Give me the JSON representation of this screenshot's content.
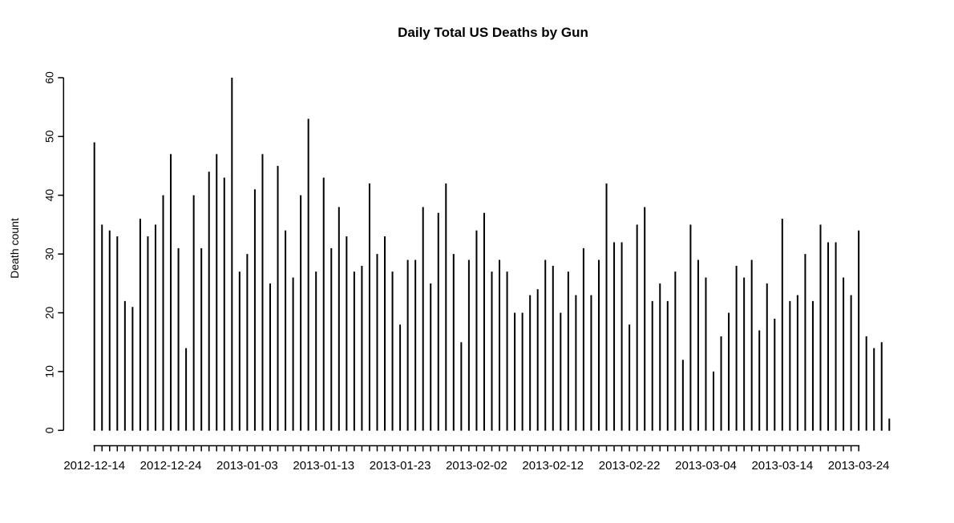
{
  "chart_data": {
    "type": "bar",
    "title": "Daily Total US Deaths by Gun",
    "xlabel": "",
    "ylabel": "Death count",
    "ylim": [
      0,
      60
    ],
    "yticks": [
      0,
      10,
      20,
      30,
      40,
      50,
      60
    ],
    "grid": false,
    "legend_position": "none",
    "bar_color": "#000000",
    "background_color": "#ffffff",
    "bar_style": "thin-vertical-line",
    "x_last_tick_date": "2013-03-24",
    "xtick_labels": [
      "2012-12-14",
      "2012-12-24",
      "2013-01-03",
      "2013-01-13",
      "2013-01-23",
      "2013-02-02",
      "2013-02-12",
      "2013-02-22",
      "2013-03-04",
      "2013-03-14",
      "2013-03-24"
    ],
    "x": [
      "2012-12-14",
      "2012-12-15",
      "2012-12-16",
      "2012-12-17",
      "2012-12-18",
      "2012-12-19",
      "2012-12-20",
      "2012-12-21",
      "2012-12-22",
      "2012-12-23",
      "2012-12-24",
      "2012-12-25",
      "2012-12-26",
      "2012-12-27",
      "2012-12-28",
      "2012-12-29",
      "2012-12-30",
      "2012-12-31",
      "2013-01-01",
      "2013-01-02",
      "2013-01-03",
      "2013-01-04",
      "2013-01-05",
      "2013-01-06",
      "2013-01-07",
      "2013-01-08",
      "2013-01-09",
      "2013-01-10",
      "2013-01-11",
      "2013-01-12",
      "2013-01-13",
      "2013-01-14",
      "2013-01-15",
      "2013-01-16",
      "2013-01-17",
      "2013-01-18",
      "2013-01-19",
      "2013-01-20",
      "2013-01-21",
      "2013-01-22",
      "2013-01-23",
      "2013-01-24",
      "2013-01-25",
      "2013-01-26",
      "2013-01-27",
      "2013-01-28",
      "2013-01-29",
      "2013-01-30",
      "2013-01-31",
      "2013-02-01",
      "2013-02-02",
      "2013-02-03",
      "2013-02-04",
      "2013-02-05",
      "2013-02-06",
      "2013-02-07",
      "2013-02-08",
      "2013-02-09",
      "2013-02-10",
      "2013-02-11",
      "2013-02-12",
      "2013-02-13",
      "2013-02-14",
      "2013-02-15",
      "2013-02-16",
      "2013-02-17",
      "2013-02-18",
      "2013-02-19",
      "2013-02-20",
      "2013-02-21",
      "2013-02-22",
      "2013-02-23",
      "2013-02-24",
      "2013-02-25",
      "2013-02-26",
      "2013-02-27",
      "2013-02-28",
      "2013-03-01",
      "2013-03-02",
      "2013-03-03",
      "2013-03-04",
      "2013-03-05",
      "2013-03-06",
      "2013-03-07",
      "2013-03-08",
      "2013-03-09",
      "2013-03-10",
      "2013-03-11",
      "2013-03-12",
      "2013-03-13",
      "2013-03-14",
      "2013-03-15",
      "2013-03-16",
      "2013-03-17",
      "2013-03-18",
      "2013-03-19",
      "2013-03-20",
      "2013-03-21",
      "2013-03-22",
      "2013-03-23",
      "2013-03-24",
      "2013-03-25",
      "2013-03-26",
      "2013-03-27",
      "2013-03-28"
    ],
    "values": [
      49,
      35,
      34,
      33,
      22,
      21,
      36,
      33,
      35,
      40,
      47,
      31,
      14,
      40,
      31,
      44,
      47,
      43,
      60,
      27,
      30,
      41,
      47,
      25,
      45,
      34,
      26,
      40,
      53,
      27,
      43,
      31,
      38,
      33,
      27,
      28,
      42,
      30,
      33,
      27,
      18,
      29,
      29,
      38,
      25,
      37,
      42,
      30,
      15,
      29,
      34,
      37,
      27,
      29,
      27,
      20,
      20,
      23,
      24,
      29,
      28,
      20,
      27,
      23,
      31,
      23,
      29,
      42,
      32,
      32,
      18,
      35,
      38,
      22,
      25,
      22,
      27,
      12,
      35,
      29,
      26,
      10,
      16,
      20,
      28,
      26,
      29,
      17,
      25,
      19,
      36,
      22,
      23,
      30,
      22,
      35,
      32,
      32,
      26,
      23,
      34,
      16,
      14,
      15,
      2
    ]
  }
}
